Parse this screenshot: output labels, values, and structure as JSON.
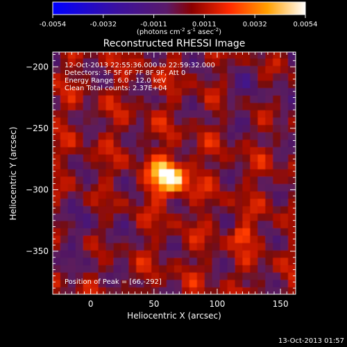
{
  "colorbar": {
    "ticks": [
      "-0.0054",
      "-0.0032",
      "-0.0011",
      "0.0011",
      "0.0032",
      "0.0054"
    ],
    "units_prefix": "(photons cm",
    "units_exp1": "-2",
    "units_mid": " s",
    "units_exp2": "-1",
    "units_end": " asec",
    "units_exp3": "-2",
    "units_close": ")"
  },
  "footer": {
    "timestamp": "13-Oct-2013 01:57"
  },
  "chart_data": {
    "type": "heatmap",
    "title": "Reconstructed RHESSI Image",
    "xlabel": "Heliocentric X (arcsec)",
    "ylabel": "Heliocentric Y (arcsec)",
    "xlim": [
      -30,
      162
    ],
    "ylim": [
      -385,
      -188
    ],
    "x_ticks": [
      0,
      50,
      100,
      150
    ],
    "y_ticks": [
      -200,
      -250,
      -300,
      -350
    ],
    "colorbar_range": [
      -0.0054,
      0.0054
    ],
    "annotations": [
      "12-Oct-2013 22:55:36.000  to  22:59:32.000",
      "Detectors: 3F 5F 6F 7F 8F 9F, Att 0",
      "Energy Range: 6.0 - 12.0 keV",
      "Clean     Total counts: 2.37E+04"
    ],
    "peak_label": "Position of Peak = [66,-292]",
    "peak_position": [
      66,
      -292
    ],
    "sources": [
      {
        "x": 62,
        "y": -290,
        "value": 0.0054
      },
      {
        "x": 120,
        "y": -337,
        "value": 0.0034
      }
    ]
  }
}
